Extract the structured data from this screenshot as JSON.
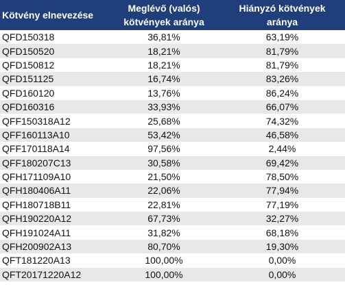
{
  "table": {
    "headers": [
      "Kötvény elnevezése",
      "Meglévő (valós) kötvények aránya",
      "Hiányzó kötvények aránya"
    ],
    "rows": [
      [
        "QFD150318",
        "36,81%",
        "63,19%"
      ],
      [
        "QFD150520",
        "18,21%",
        "81,79%"
      ],
      [
        "QFD150812",
        "18,21%",
        "81,79%"
      ],
      [
        "QFD151125",
        "16,74%",
        "83,26%"
      ],
      [
        "QFD160120",
        "13,76%",
        "86,24%"
      ],
      [
        "QFD160316",
        "33,93%",
        "66,07%"
      ],
      [
        "QFF150318A12",
        "25,68%",
        "74,32%"
      ],
      [
        "QFF160113A10",
        "53,42%",
        "46,58%"
      ],
      [
        "QFF170118A14",
        "97,56%",
        "2,44%"
      ],
      [
        "QFF180207C13",
        "30,58%",
        "69,42%"
      ],
      [
        "QFH171109A10",
        "21,50%",
        "78,50%"
      ],
      [
        "QFH180406A11",
        "22,06%",
        "77,94%"
      ],
      [
        "QFH180718B11",
        "22,81%",
        "77,19%"
      ],
      [
        "QFH190220A12",
        "67,73%",
        "32,27%"
      ],
      [
        "QFH191024A11",
        "31,82%",
        "68,18%"
      ],
      [
        "QFH200902A13",
        "80,70%",
        "19,30%"
      ],
      [
        "QFT181220A13",
        "100,00%",
        "0,00%"
      ],
      [
        "QFT20171220A12",
        "100,00%",
        "0,00%"
      ]
    ]
  },
  "colors": {
    "header_bg": "#1f3e7a",
    "header_text": "#ffffff",
    "stripe": "#e8e8e8"
  }
}
